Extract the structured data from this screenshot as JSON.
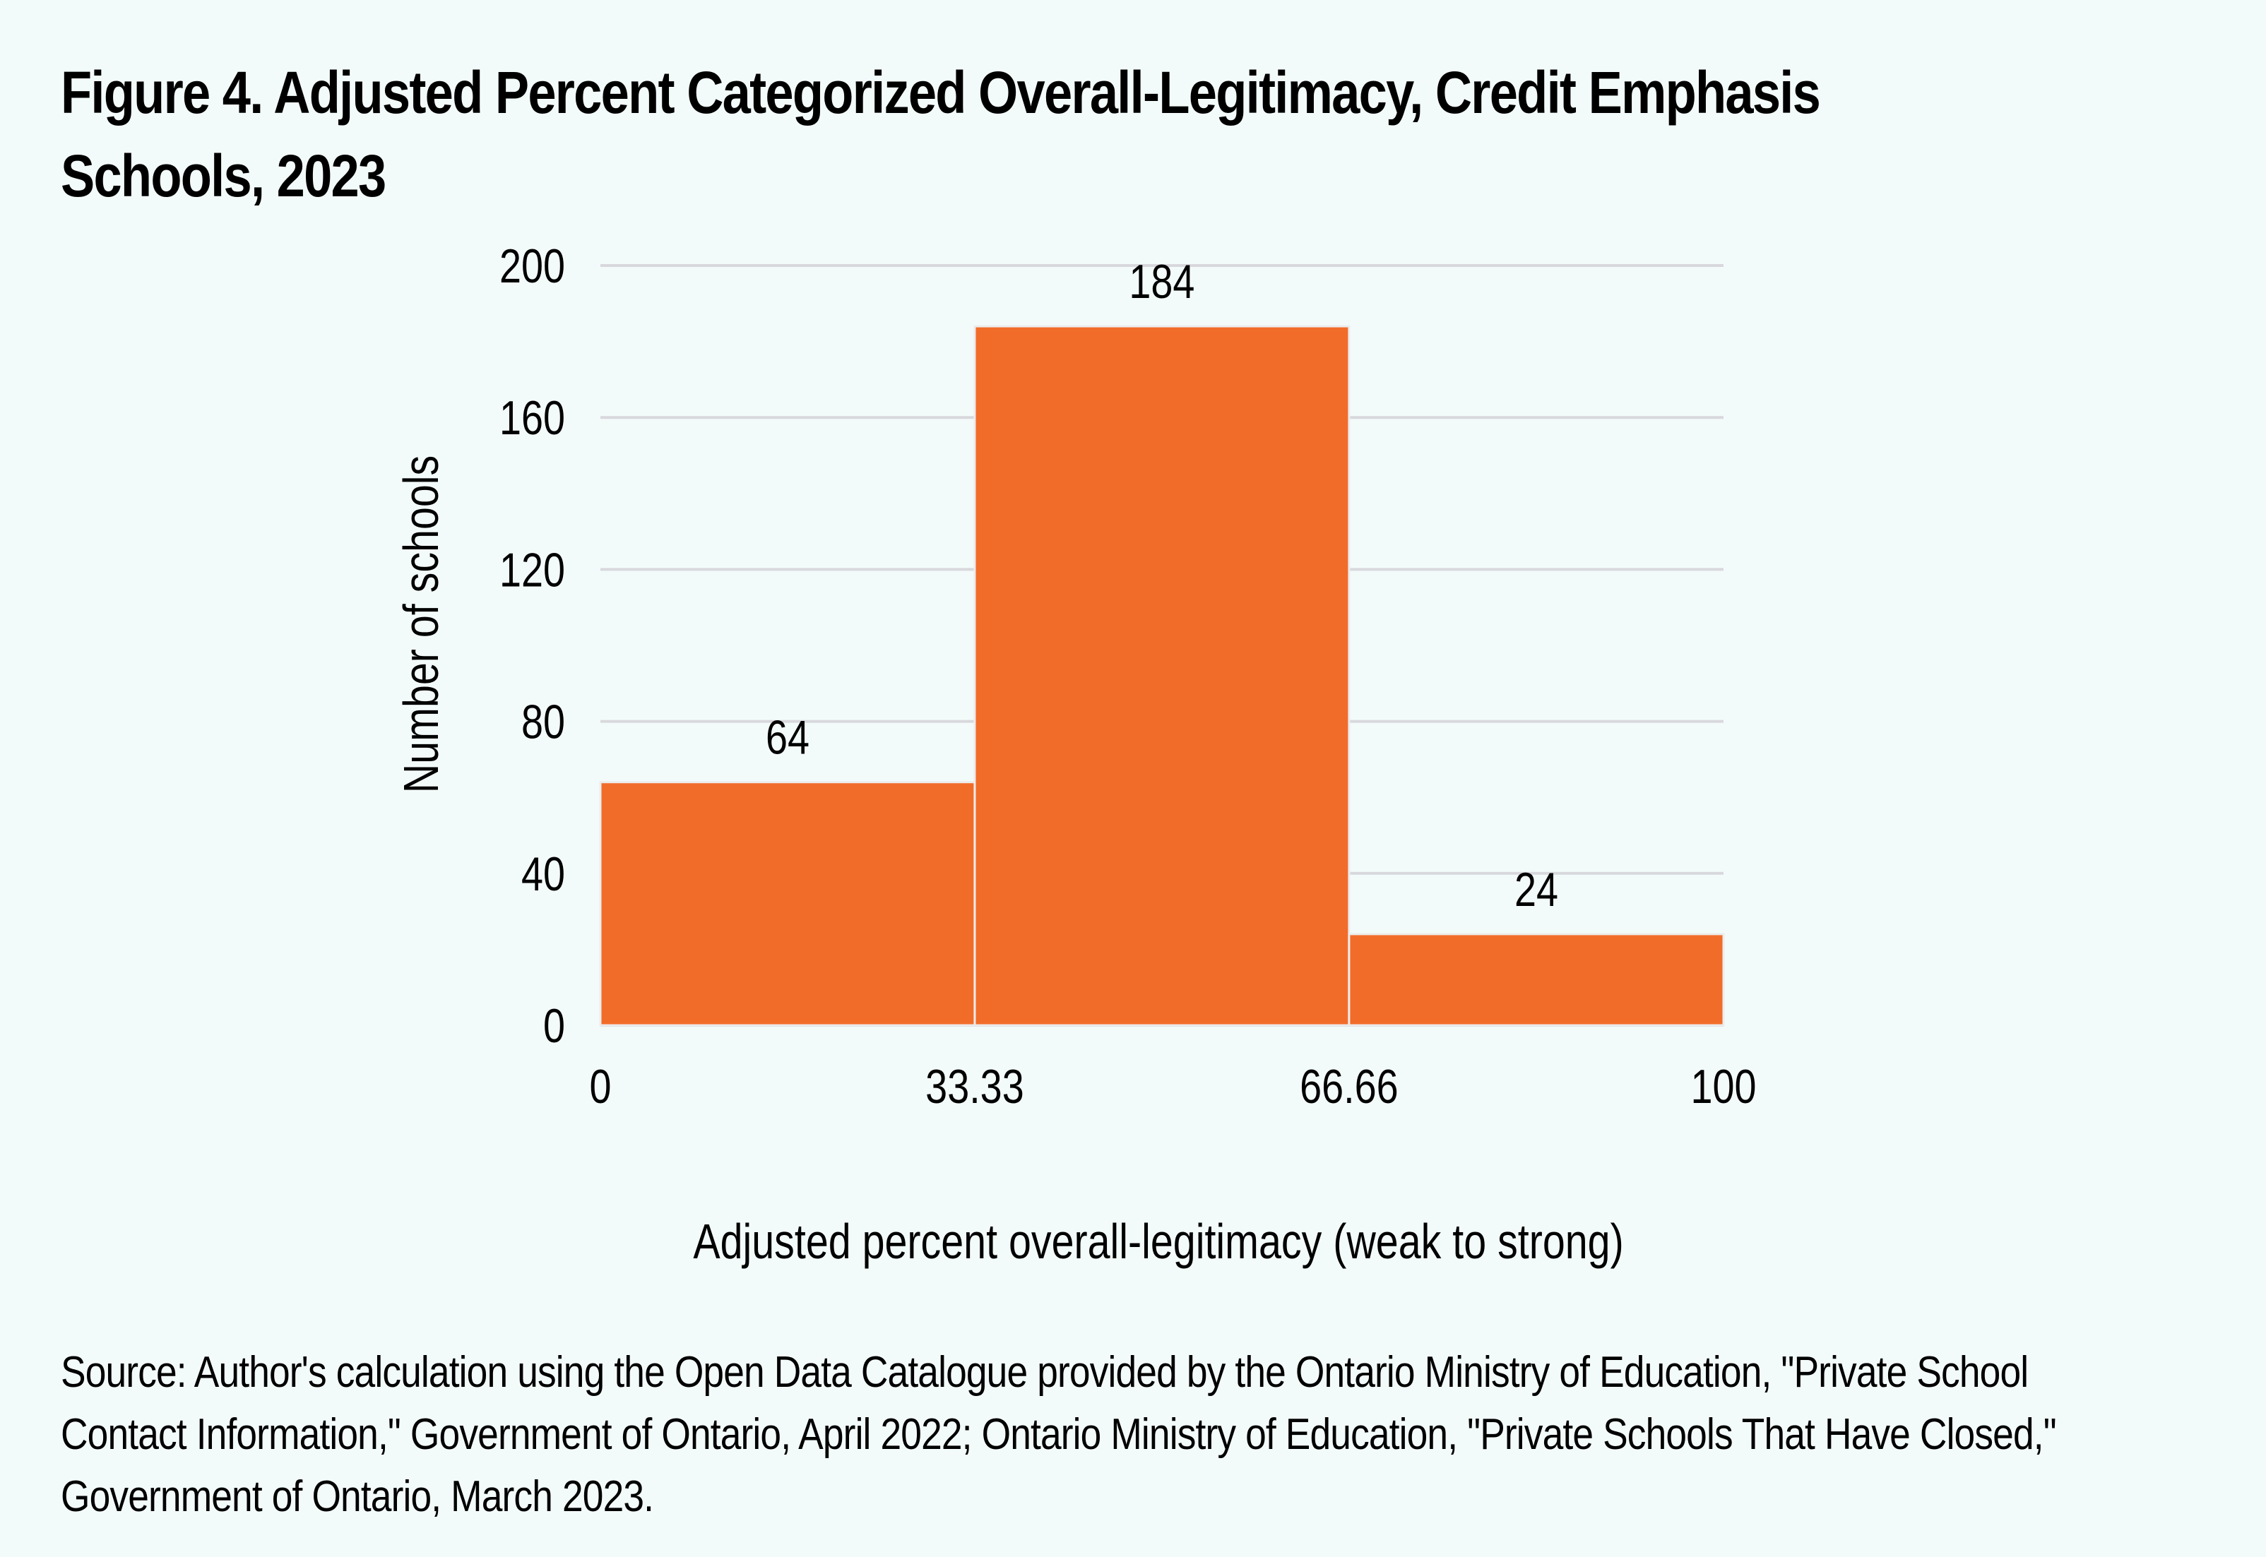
{
  "figure": {
    "title": "Figure 4. Adjusted Percent Categorized Overall-Legitimacy, Credit Emphasis Schools, 2023",
    "source": "Source: Author's calculation using the Open Data Catalogue provided by the Ontario Ministry of Education, \"Private School Contact Information,\" Government of Ontario, April 2022; Ontario Ministry of Education, \"Private Schools That Have Closed,\" Government of Ontario, March 2023."
  },
  "colors": {
    "bar": "#F26C29",
    "background": "#F3FBFA",
    "grid": "#D8D8DC"
  },
  "chart_data": {
    "type": "bar",
    "subtype": "histogram",
    "title": "Figure 4. Adjusted Percent Categorized Overall-Legitimacy, Credit Emphasis Schools, 2023",
    "xlabel": "Adjusted percent overall-legitimacy (weak to strong)",
    "ylabel": "Number of schools",
    "bins": [
      [
        0,
        33.33
      ],
      [
        33.33,
        66.66
      ],
      [
        66.66,
        100
      ]
    ],
    "categories": [
      "0–33.33",
      "33.33–66.66",
      "66.66–100"
    ],
    "values": [
      64,
      184,
      24
    ],
    "data_labels": [
      "64",
      "184",
      "24"
    ],
    "x_ticks": [
      "0",
      "33.33",
      "66.66",
      "100"
    ],
    "x_tick_values": [
      0,
      33.33,
      66.66,
      100
    ],
    "y_ticks": [
      "0",
      "40",
      "80",
      "120",
      "160",
      "200"
    ],
    "y_tick_values": [
      0,
      40,
      80,
      120,
      160,
      200
    ],
    "xlim": [
      0,
      100
    ],
    "ylim": [
      0,
      200
    ],
    "grid": "horizontal",
    "legend": "none"
  }
}
